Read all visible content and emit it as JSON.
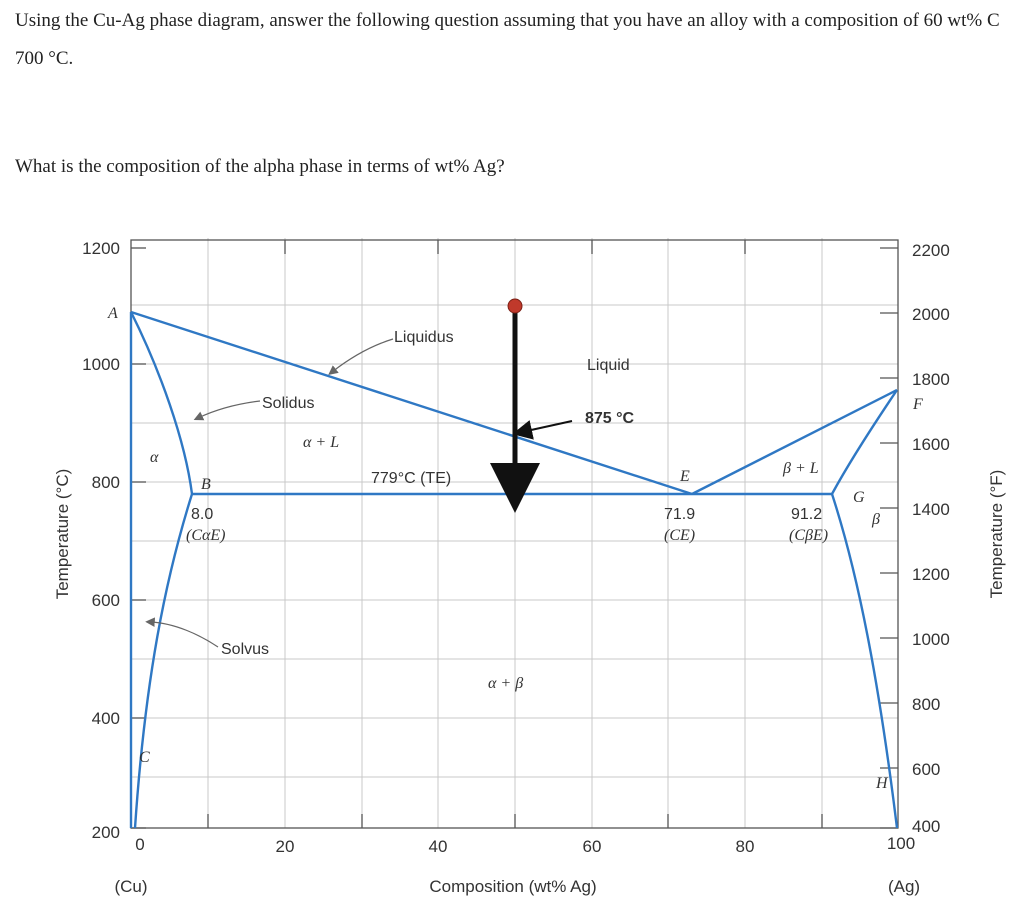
{
  "question": {
    "line1": "Using the Cu-Ag phase diagram, answer the following question assuming that you have an alloy with a composition of 60 wt% C",
    "line2": "700 °C.",
    "line3": "What is the composition of the alpha phase in terms of wt% Ag?"
  },
  "diagram": {
    "left_axis_label": "Temperature (°C)",
    "right_axis_label": "Temperature (°F)",
    "x_axis_label": "Composition (wt% Ag)",
    "x_left_end": "(Cu)",
    "x_right_end": "(Ag)",
    "x_ticks": [
      "0",
      "20",
      "40",
      "60",
      "80",
      "100"
    ],
    "y_ticks_c": [
      "1200",
      "1000",
      "800",
      "600",
      "400",
      "200"
    ],
    "y_ticks_f": [
      "2200",
      "2000",
      "1800",
      "1600",
      "1400",
      "1200",
      "1000",
      "800",
      "600",
      "400"
    ],
    "region_liquid": "Liquid",
    "region_alpha": "α",
    "region_beta": "β",
    "region_alpha_liquid": "α + L",
    "region_beta_liquid": "β + L",
    "region_alpha_beta": "α + β",
    "label_liquidus": "Liquidus",
    "label_solidus": "Solidus",
    "label_solvus": "Solvus",
    "eutectic_temp": "779°C (TE)",
    "marker_temp": "875 °C",
    "point_A": "A",
    "point_B": "B",
    "point_C": "C",
    "point_E": "E",
    "point_F": "F",
    "point_G": "G",
    "point_H": "H",
    "comp_alphaE_value": "8.0",
    "comp_alphaE_label": "(CαE)",
    "comp_E_value": "71.9",
    "comp_E_label": "(CE)",
    "comp_betaE_value": "91.2",
    "comp_betaE_label": "(CβE)",
    "accent_color": "#2f78c4",
    "marker_color": "#c0392b"
  },
  "chart_data": {
    "type": "phase_diagram",
    "xlabel": "Composition (wt% Ag)",
    "ylabel": "Temperature (°C)",
    "y2label": "Temperature (°F)",
    "xlim": [
      0,
      100
    ],
    "ylim": [
      200,
      1200
    ],
    "points": {
      "A": [
        0,
        1085
      ],
      "B": [
        8.0,
        779
      ],
      "C": [
        0,
        300
      ],
      "E": [
        71.9,
        779
      ],
      "F": [
        100,
        962
      ],
      "G": [
        91.2,
        779
      ],
      "H": [
        100,
        300
      ]
    },
    "eutectic": {
      "temperature_c": 779,
      "composition": 71.9
    },
    "alloy_line": {
      "composition": 50,
      "start_c": 1100,
      "end_c": 779,
      "crossing_c": 875
    }
  }
}
